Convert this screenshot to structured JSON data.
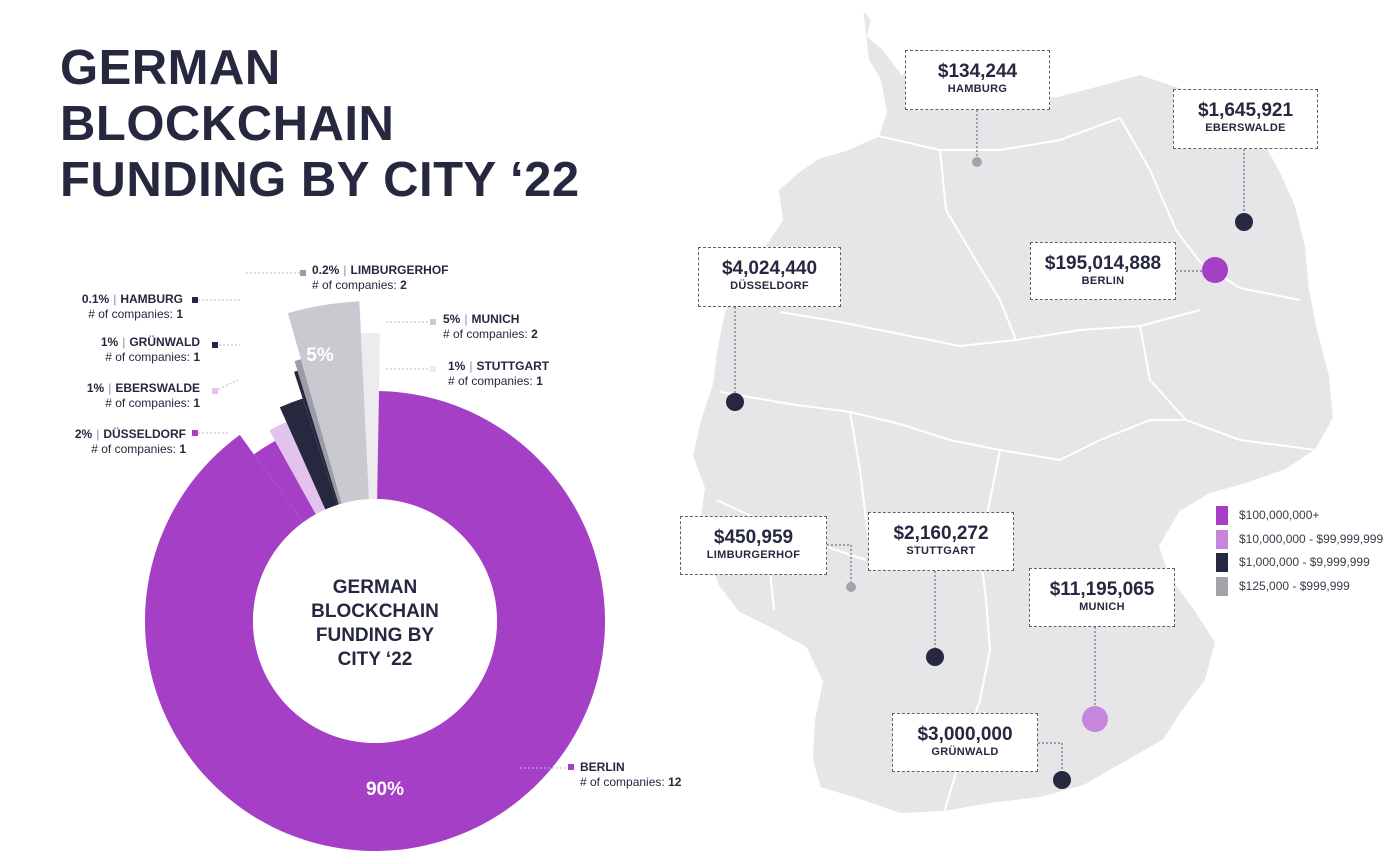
{
  "title_lines": [
    "GERMAN",
    "BLOCKCHAIN",
    "FUNDING BY CITY ‘22"
  ],
  "center_lines": [
    "GERMAN",
    "BLOCKCHAIN",
    "FUNDING BY",
    "CITY ‘22"
  ],
  "company_count_prefix": "# of companies:",
  "colors": {
    "dark": "#262840",
    "purple": "#a53fc6",
    "lavender": "#c786dc",
    "light_lilac": "#e4c2ee",
    "gray": "#c9cacf",
    "light_gray": "#ececee",
    "map_fill": "#e6e6e8",
    "map_border": "#ffffff"
  },
  "chart_data": [
    {
      "type": "pie",
      "title": "GERMAN BLOCKCHAIN FUNDING BY CITY ‘22",
      "slices": [
        {
          "city": "BERLIN",
          "percent_label": "90%",
          "value": 90,
          "companies": 12,
          "color": "#a53fc6",
          "show_inner_label": true
        },
        {
          "city": "DÜSSELDORF",
          "percent_label": "2%",
          "value": 2,
          "companies": 1,
          "color": "#a53fc6",
          "show_inner_label": false
        },
        {
          "city": "EBERSWALDE",
          "percent_label": "1%",
          "value": 1,
          "companies": 1,
          "color": "#e4c2ee",
          "show_inner_label": false
        },
        {
          "city": "GRÜNWALD",
          "percent_label": "1%",
          "value": 1,
          "companies": 1,
          "color": "#262840",
          "show_inner_label": false
        },
        {
          "city": "HAMBURG",
          "percent_label": "0.1%",
          "value": 0.1,
          "companies": 1,
          "color": "#262840",
          "show_inner_label": false
        },
        {
          "city": "LIMBURGERHOF",
          "percent_label": "0.2%",
          "value": 0.2,
          "companies": 2,
          "color": "#9b9ca5",
          "show_inner_label": false
        },
        {
          "city": "MUNICH",
          "percent_label": "5%",
          "value": 5,
          "companies": 2,
          "color": "#c9cacf",
          "show_inner_label": true
        },
        {
          "city": "STUTTGART",
          "percent_label": "1%",
          "value": 1,
          "companies": 1,
          "color": "#ececee",
          "show_inner_label": false
        }
      ]
    },
    {
      "type": "map",
      "cities": [
        {
          "name": "HAMBURG",
          "amount": "$134,244",
          "value": 134244,
          "tier": "$125,000 - $999,999"
        },
        {
          "name": "EBERSWALDE",
          "amount": "$1,645,921",
          "value": 1645921,
          "tier": "$1,000,000 - $9,999,999"
        },
        {
          "name": "BERLIN",
          "amount": "$195,014,888",
          "value": 195014888,
          "tier": "$100,000,000+"
        },
        {
          "name": "DÜSSELDORF",
          "amount": "$4,024,440",
          "value": 4024440,
          "tier": "$1,000,000 - $9,999,999"
        },
        {
          "name": "LIMBURGERHOF",
          "amount": "$450,959",
          "value": 450959,
          "tier": "$125,000 - $999,999"
        },
        {
          "name": "STUTTGART",
          "amount": "$2,160,272",
          "value": 2160272,
          "tier": "$1,000,000 - $9,999,999"
        },
        {
          "name": "MUNICH",
          "amount": "$11,195,065",
          "value": 11195065,
          "tier": "$10,000,000 - $99,999,999"
        },
        {
          "name": "GRÜNWALD",
          "amount": "$3,000,000",
          "value": 3000000,
          "tier": "$1,000,000 - $9,999,999"
        }
      ],
      "legend": [
        {
          "label": "$100,000,000+",
          "color": "#a53fc6"
        },
        {
          "label": "$10,000,000 - $99,999,999",
          "color": "#c786dc"
        },
        {
          "label": "$1,000,000 - $9,999,999",
          "color": "#262840"
        },
        {
          "label": "$125,000 - $999,999",
          "color": "#a3a4ab"
        }
      ]
    }
  ]
}
